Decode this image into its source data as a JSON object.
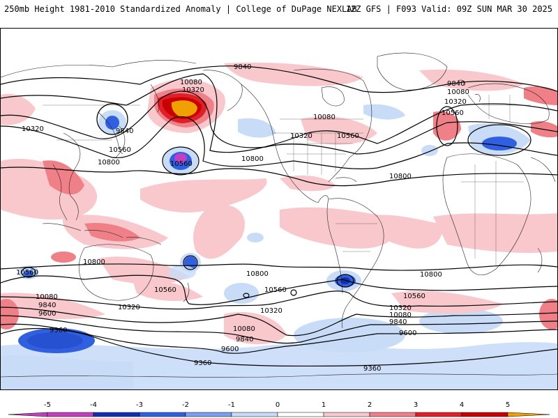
{
  "header": {
    "title_left": "250mb Height 1981-2010 Standardized Anomaly | College of DuPage NEXLAB",
    "title_right": "12Z GFS | F093 Valid: 09Z SUN MAR 30 2025"
  },
  "colorbar": {
    "ticks": [
      -5,
      -4,
      -3,
      -2,
      -1,
      0,
      1,
      2,
      3,
      4,
      5
    ],
    "colors": {
      "lt_-4": "#c040c0",
      "-4_-3": "#1030b0",
      "-3_-2": "#3060e0",
      "-2_-1": "#7aa0f0",
      "-1_0": "#c8dcf8",
      "0_1": "#ffffff",
      "1_2": "#f8c8cc",
      "2_3": "#f08088",
      "3_4": "#e02028",
      "4_5": "#c80000",
      "gt_5": "#f0a000"
    }
  },
  "contour_labels": [
    "9840",
    "10080",
    "10320",
    "10560",
    "10800",
    "9360",
    "9600"
  ],
  "map_labels": [
    {
      "text": "9840",
      "id": "c1"
    },
    {
      "text": "10080",
      "id": "c2"
    },
    {
      "text": "10320",
      "id": "c3"
    },
    {
      "text": "10320",
      "id": "c4"
    },
    {
      "text": "9840",
      "id": "c5"
    },
    {
      "text": "10560",
      "id": "c6"
    },
    {
      "text": "10800",
      "id": "c7"
    },
    {
      "text": "10560",
      "id": "c8"
    },
    {
      "text": "10800",
      "id": "c9"
    },
    {
      "text": "10320",
      "id": "c10"
    },
    {
      "text": "10080",
      "id": "c11"
    },
    {
      "text": "10560",
      "id": "c12"
    },
    {
      "text": "9840",
      "id": "c13"
    },
    {
      "text": "10080",
      "id": "c14"
    },
    {
      "text": "10320",
      "id": "c15"
    },
    {
      "text": "10560",
      "id": "c16"
    },
    {
      "text": "10800",
      "id": "c17"
    },
    {
      "text": "10560",
      "id": "c18"
    },
    {
      "text": "10800",
      "id": "c19"
    },
    {
      "text": "10560",
      "id": "c20"
    },
    {
      "text": "10080",
      "id": "c21"
    },
    {
      "text": "9840",
      "id": "c22"
    },
    {
      "text": "9600",
      "id": "c23"
    },
    {
      "text": "9360",
      "id": "c24"
    },
    {
      "text": "10320",
      "id": "c25"
    },
    {
      "text": "10800",
      "id": "c26"
    },
    {
      "text": "10560",
      "id": "c27"
    },
    {
      "text": "10320",
      "id": "c28"
    },
    {
      "text": "10080",
      "id": "c29"
    },
    {
      "text": "9840",
      "id": "c30"
    },
    {
      "text": "10800",
      "id": "c31"
    },
    {
      "text": "10560",
      "id": "c32"
    },
    {
      "text": "10320",
      "id": "c33"
    },
    {
      "text": "10080",
      "id": "c34"
    },
    {
      "text": "9840",
      "id": "c35"
    },
    {
      "text": "9600",
      "id": "c36"
    },
    {
      "text": "9600",
      "id": "c37"
    },
    {
      "text": "9360",
      "id": "c38"
    },
    {
      "text": "9360",
      "id": "c39"
    }
  ]
}
